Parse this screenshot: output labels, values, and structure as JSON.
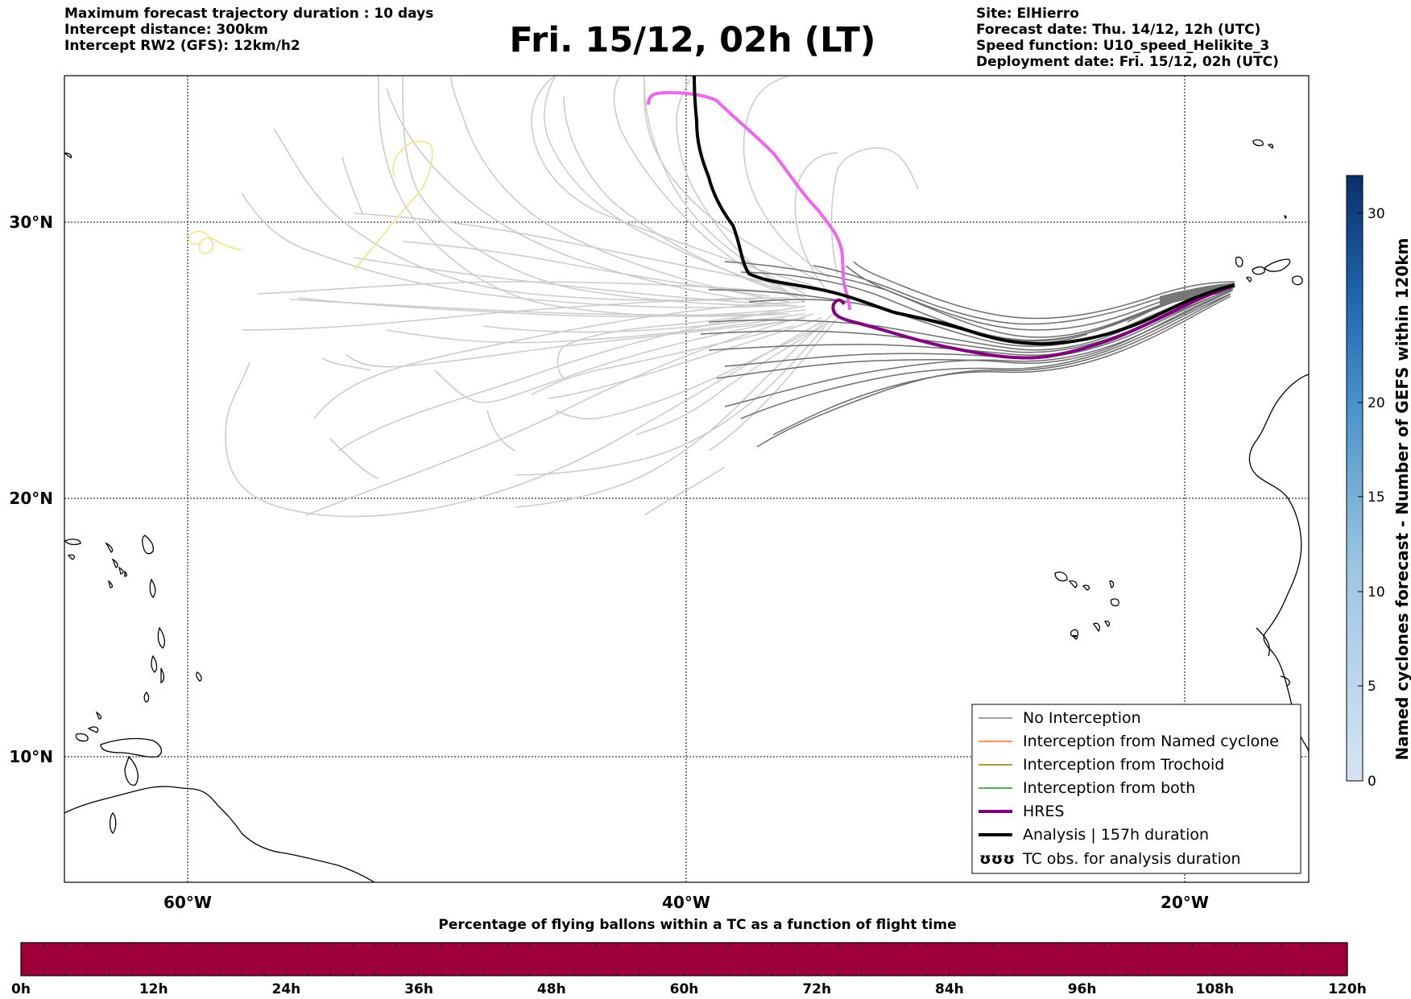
{
  "header": {
    "left_lines": [
      "Maximum forecast trajectory duration : 10 days",
      "Intercept distance: 300km",
      "Intercept RW2 (GFS):  12km/h2"
    ],
    "title": "Fri. 15/12, 02h (LT)",
    "right_lines": [
      "Site: ElHierro",
      "Forecast date: Thu. 14/12, 12h (UTC)",
      "Speed function: U10_speed_Helikite_3",
      "Deployment date: Fri. 15/12, 02h (UTC)"
    ]
  },
  "map": {
    "lon_ticks": [
      "60°W",
      "40°W",
      "20°W"
    ],
    "lat_ticks": [
      "30°N",
      "20°N",
      "10°N"
    ]
  },
  "legend": {
    "items": [
      {
        "label": "No Interception",
        "color": "#808080",
        "style": "thin"
      },
      {
        "label": "Interception from Named cyclone",
        "color": "#ff6a1a",
        "style": "thin"
      },
      {
        "label": "Interception from Trochoid",
        "color": "#808000",
        "style": "thin"
      },
      {
        "label": "Interception from both",
        "color": "#1f8f1f",
        "style": "thin"
      },
      {
        "label": "HRES",
        "color": "#800080",
        "style": "thick"
      },
      {
        "label": "Analysis | 157h duration",
        "color": "#000000",
        "style": "thick"
      },
      {
        "label": "TC obs. for analysis duration",
        "color": "#000000",
        "style": "symbol",
        "symbol": "ʊʊʊ"
      }
    ]
  },
  "colorbar_right": {
    "label": "Named cyclones forecast - Number of GEFS within 120km",
    "ticks": [
      "0",
      "5",
      "10",
      "15",
      "20",
      "30"
    ],
    "range": [
      0,
      32
    ],
    "color_low": "#d6e4f4",
    "color_high": "#0a2f6b"
  },
  "colorbar_bottom": {
    "title": "Percentage of flying ballons within a TC as a function of flight time",
    "ticks": [
      "0h",
      "12h",
      "24h",
      "36h",
      "48h",
      "60h",
      "72h",
      "84h",
      "96h",
      "108h",
      "120h"
    ],
    "fill_color": "#9e003a"
  },
  "colors": {
    "ensemble_light": "#cccccc",
    "ensemble_dark": "#6e6e6e",
    "hres_forecast": "#ee66ee",
    "yellow_track": "#eee680"
  }
}
